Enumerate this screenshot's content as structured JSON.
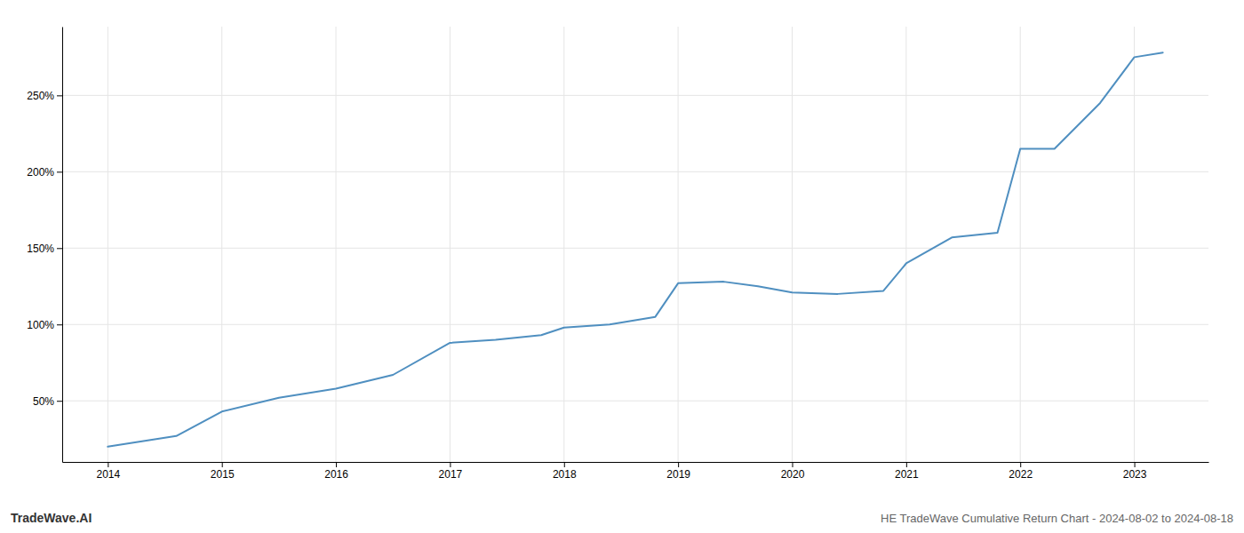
{
  "chart_data": {
    "type": "line",
    "title": "HE TradeWave Cumulative Return Chart - 2024-08-02 to 2024-08-18",
    "annotations": [
      "TradeWave.AI"
    ],
    "x": [
      2014.0,
      2014.6,
      2015.0,
      2015.5,
      2016.0,
      2016.5,
      2017.0,
      2017.4,
      2017.8,
      2018.0,
      2018.4,
      2018.8,
      2019.0,
      2019.4,
      2019.7,
      2020.0,
      2020.4,
      2020.8,
      2021.0,
      2021.4,
      2021.8,
      2022.0,
      2022.3,
      2022.7,
      2023.0,
      2023.25
    ],
    "values": [
      20,
      27,
      43,
      52,
      58,
      67,
      88,
      90,
      93,
      98,
      100,
      105,
      127,
      128,
      125,
      121,
      120,
      122,
      140,
      157,
      160,
      215,
      215,
      245,
      275,
      278
    ],
    "color": "#4f8fc0",
    "xlim": [
      2013.6,
      2023.65
    ],
    "ylim": [
      10,
      295
    ],
    "xticks": [
      2014,
      2015,
      2016,
      2017,
      2018,
      2019,
      2020,
      2021,
      2022,
      2023
    ],
    "yticks": [
      {
        "value": 50,
        "label": "50%"
      },
      {
        "value": 100,
        "label": "100%"
      },
      {
        "value": 150,
        "label": "150%"
      },
      {
        "value": 200,
        "label": "200%"
      },
      {
        "value": 250,
        "label": "250%"
      }
    ],
    "grid": true
  }
}
